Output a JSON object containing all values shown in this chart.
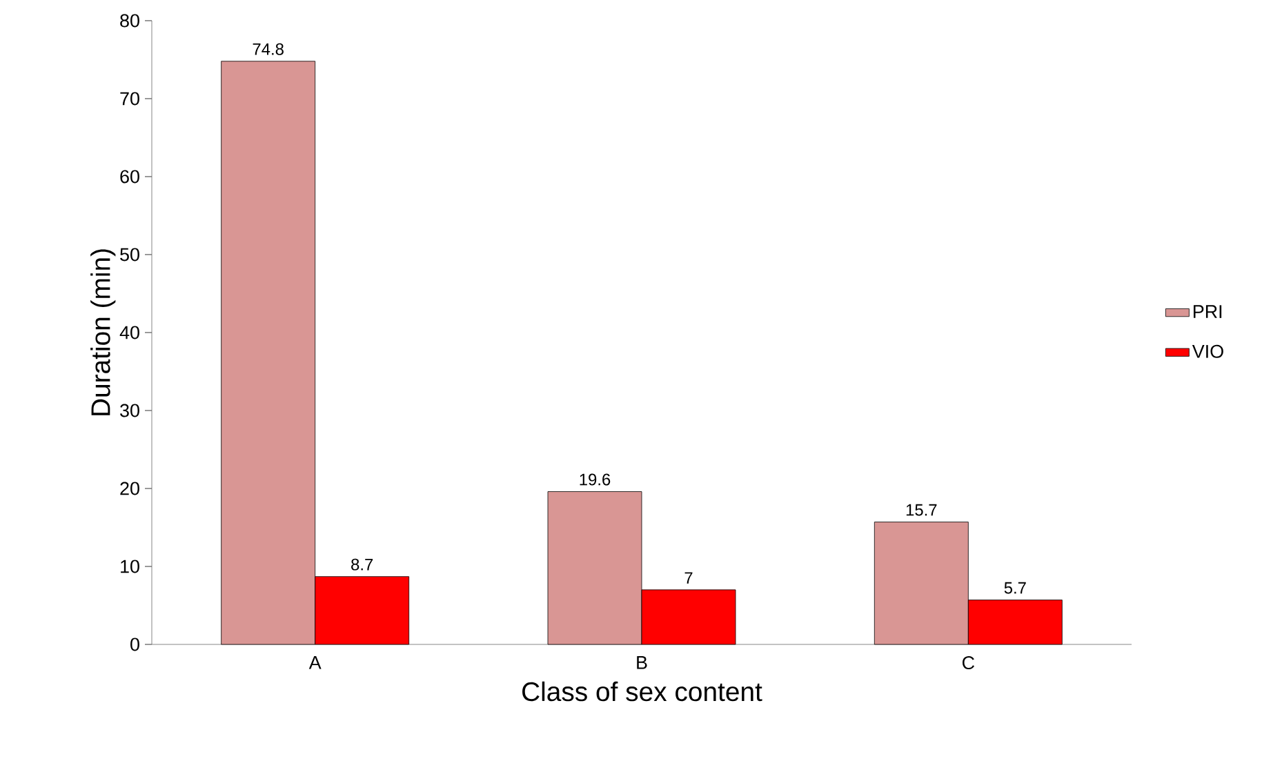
{
  "chart_data": {
    "type": "bar",
    "xlabel": "Class of sex content",
    "ylabel": "Duration (min)",
    "categories": [
      "A",
      "B",
      "C"
    ],
    "series": [
      {
        "name": "PRI",
        "color": "#d99694",
        "values": [
          74.8,
          19.6,
          15.7
        ]
      },
      {
        "name": "VIO",
        "color": "#ff0000",
        "values": [
          8.7,
          7,
          5.7
        ]
      }
    ],
    "ylim": [
      0,
      80
    ],
    "yticks": [
      0,
      10,
      20,
      30,
      40,
      50,
      60,
      70,
      80
    ],
    "grid": false,
    "legend": "right",
    "data_labels": true
  }
}
